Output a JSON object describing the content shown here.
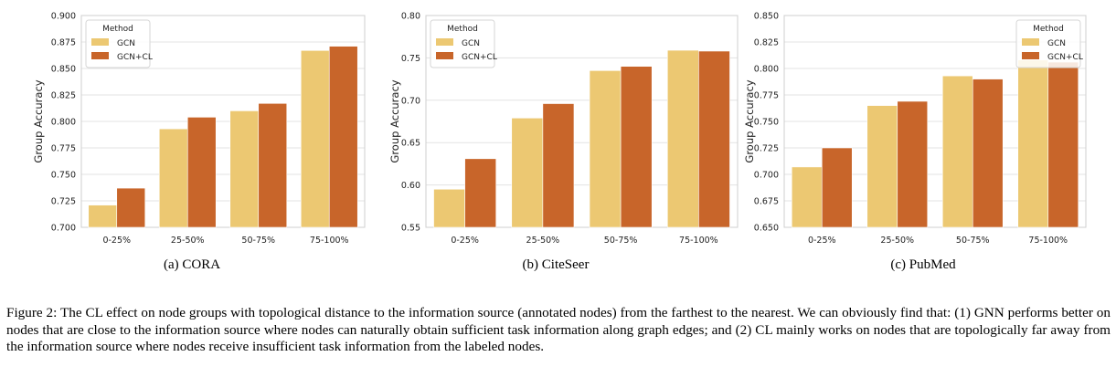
{
  "chart_data": [
    {
      "type": "bar",
      "caption": "(a) CORA",
      "ylabel": "Group Accuracy",
      "categories": [
        "0-25%",
        "25-50%",
        "50-75%",
        "75-100%"
      ],
      "ylim": [
        0.7,
        0.9
      ],
      "yticks": [
        "0.700",
        "0.725",
        "0.750",
        "0.775",
        "0.800",
        "0.825",
        "0.850",
        "0.875",
        "0.900"
      ],
      "legend_title": "Method",
      "legend_pos": "top-left",
      "series": [
        {
          "name": "GCN",
          "values": [
            0.721,
            0.793,
            0.81,
            0.867
          ]
        },
        {
          "name": "GCN+CL",
          "values": [
            0.737,
            0.804,
            0.817,
            0.871
          ]
        }
      ]
    },
    {
      "type": "bar",
      "caption": "(b) CiteSeer",
      "ylabel": "Group Accuracy",
      "categories": [
        "0-25%",
        "25-50%",
        "50-75%",
        "75-100%"
      ],
      "ylim": [
        0.55,
        0.8
      ],
      "yticks": [
        "0.55",
        "0.60",
        "0.65",
        "0.70",
        "0.75",
        "0.80"
      ],
      "legend_title": "Method",
      "legend_pos": "top-left",
      "series": [
        {
          "name": "GCN",
          "values": [
            0.595,
            0.679,
            0.735,
            0.759
          ]
        },
        {
          "name": "GCN+CL",
          "values": [
            0.631,
            0.696,
            0.74,
            0.758
          ]
        }
      ]
    },
    {
      "type": "bar",
      "caption": "(c) PubMed",
      "ylabel": "Group Accuracy",
      "categories": [
        "0-25%",
        "25-50%",
        "50-75%",
        "75-100%"
      ],
      "ylim": [
        0.65,
        0.85
      ],
      "yticks": [
        "0.650",
        "0.675",
        "0.700",
        "0.725",
        "0.750",
        "0.775",
        "0.800",
        "0.825",
        "0.850"
      ],
      "legend_title": "Method",
      "legend_pos": "top-right",
      "series": [
        {
          "name": "GCN",
          "values": [
            0.707,
            0.765,
            0.793,
            0.808
          ]
        },
        {
          "name": "GCN+CL",
          "values": [
            0.725,
            0.769,
            0.79,
            0.806
          ]
        }
      ]
    }
  ],
  "colors": {
    "GCN": "#ecc872",
    "GCN+CL": "#c8652a"
  },
  "figure_caption": "Figure 2: The CL effect on node groups with topological distance to the information source (annotated nodes) from the farthest to the nearest. We can obviously find that: (1) GNN performs better on nodes that are close to the information source where nodes can naturally obtain sufficient task information along graph edges; and (2) CL mainly works on nodes that are topologically far away from the information source where nodes receive insufficient task information from the labeled nodes."
}
